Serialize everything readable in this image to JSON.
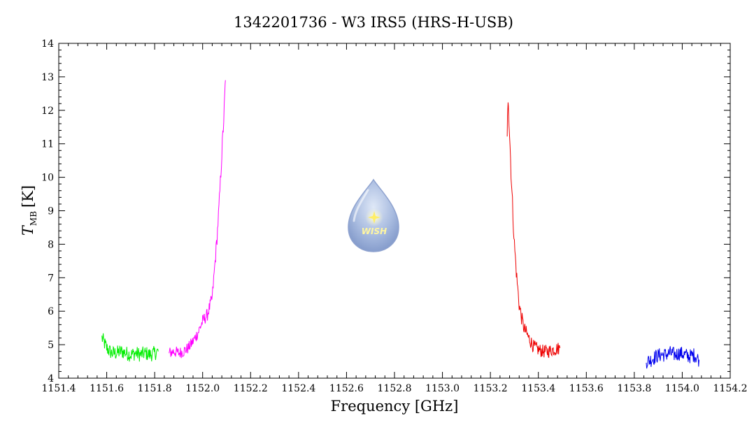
{
  "chart_data": {
    "type": "line",
    "title": "1342201736 - W3 IRS5 (HRS-H-USB)",
    "xlabel": "Frequency [GHz]",
    "ylabel_main": "T",
    "ylabel_sub": "MB",
    "ylabel_unit": "[K]",
    "xlim": [
      1151.4,
      1154.2
    ],
    "ylim": [
      4,
      14
    ],
    "xticks": [
      1151.4,
      1151.6,
      1151.8,
      1152.0,
      1152.2,
      1152.4,
      1152.6,
      1152.8,
      1153.0,
      1153.2,
      1153.4,
      1153.6,
      1153.8,
      1154.0,
      1154.2
    ],
    "xtick_labels": [
      "1151.4",
      "1151.6",
      "1151.8",
      "1152.0",
      "1152.2",
      "1152.4",
      "1152.6",
      "1152.8",
      "1153.0",
      "1153.2",
      "1153.4",
      "1153.6",
      "1153.8",
      "1154.0",
      "1154.2"
    ],
    "yticks": [
      4,
      5,
      6,
      7,
      8,
      9,
      10,
      11,
      12,
      13,
      14
    ],
    "ytick_labels": [
      "4",
      "5",
      "6",
      "7",
      "8",
      "9",
      "10",
      "11",
      "12",
      "13",
      "14"
    ],
    "grid": false,
    "series": [
      {
        "color": "#00ee00",
        "x": [
          1151.58,
          1151.6,
          1151.62,
          1151.64,
          1151.66,
          1151.68,
          1151.7,
          1151.72,
          1151.74,
          1151.76,
          1151.78,
          1151.8,
          1151.815
        ],
        "y": [
          5.2,
          4.9,
          4.75,
          4.75,
          4.8,
          4.75,
          4.7,
          4.75,
          4.7,
          4.75,
          4.7,
          4.75,
          4.8
        ]
      },
      {
        "color": "#ff00ff",
        "x": [
          1151.86,
          1151.88,
          1151.9,
          1151.92,
          1151.94,
          1151.96,
          1151.98,
          1152.0,
          1152.02,
          1152.04,
          1152.05,
          1152.06,
          1152.07,
          1152.08,
          1152.09,
          1152.095
        ],
        "y": [
          4.75,
          4.8,
          4.75,
          4.8,
          4.9,
          5.1,
          5.35,
          5.7,
          5.9,
          6.4,
          7.3,
          8.2,
          9.3,
          10.7,
          12.0,
          12.9
        ]
      },
      {
        "color": "#ee0000",
        "x": [
          1153.27,
          1153.275,
          1153.28,
          1153.29,
          1153.3,
          1153.31,
          1153.32,
          1153.33,
          1153.34,
          1153.36,
          1153.38,
          1153.4,
          1153.42,
          1153.44,
          1153.46,
          1153.49
        ],
        "y": [
          11.4,
          12.3,
          11.3,
          9.5,
          8.0,
          7.0,
          6.2,
          5.8,
          5.5,
          5.2,
          4.95,
          4.85,
          4.8,
          4.8,
          4.85,
          4.9
        ]
      },
      {
        "color": "#0000ee",
        "x": [
          1153.85,
          1153.87,
          1153.89,
          1153.91,
          1153.93,
          1153.95,
          1153.97,
          1153.99,
          1154.01,
          1154.03,
          1154.05,
          1154.07
        ],
        "y": [
          4.5,
          4.55,
          4.65,
          4.7,
          4.7,
          4.75,
          4.7,
          4.75,
          4.7,
          4.65,
          4.7,
          4.55
        ]
      }
    ],
    "noise_amplitude": [
      0.22,
      0.18,
      0.2,
      0.22
    ]
  },
  "logo": {
    "text": "WISH"
  }
}
